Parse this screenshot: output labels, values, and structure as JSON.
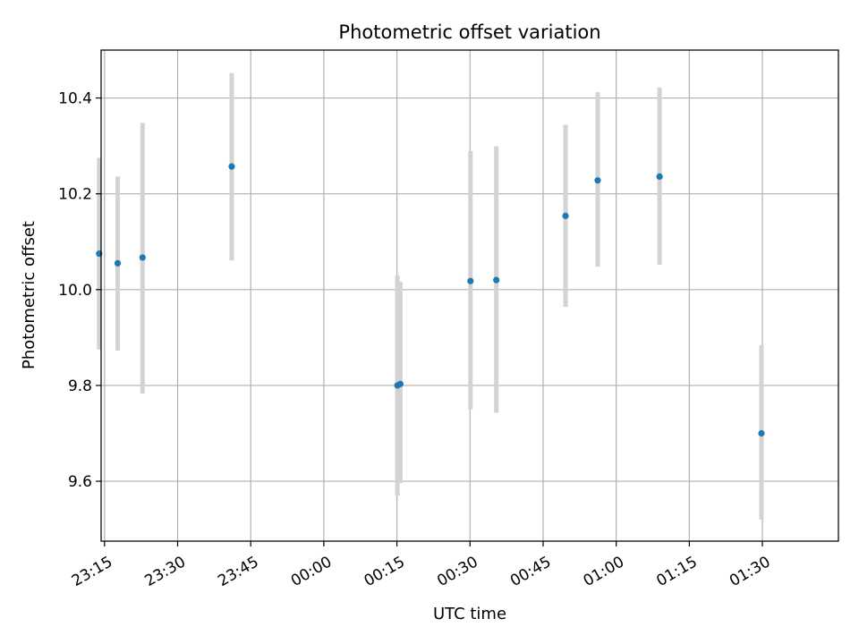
{
  "chart_data": {
    "type": "scatter",
    "title": "Photometric offset variation",
    "xlabel": "UTC time",
    "ylabel": "Photometric offset",
    "xlim_minutes": [
      -45.7,
      105.6
    ],
    "ylim": [
      9.475,
      10.5
    ],
    "grid": true,
    "legend": "none",
    "x_ticks": [
      {
        "label": "23:15",
        "minutes": -45
      },
      {
        "label": "23:30",
        "minutes": -30
      },
      {
        "label": "23:45",
        "minutes": -15
      },
      {
        "label": "00:00",
        "minutes": 0
      },
      {
        "label": "00:15",
        "minutes": 15
      },
      {
        "label": "00:30",
        "minutes": 30
      },
      {
        "label": "00:45",
        "minutes": 45
      },
      {
        "label": "01:00",
        "minutes": 60
      },
      {
        "label": "01:15",
        "minutes": 75
      },
      {
        "label": "01:30",
        "minutes": 90
      }
    ],
    "y_ticks": [
      {
        "label": "9.6",
        "value": 9.6
      },
      {
        "label": "9.8",
        "value": 9.8
      },
      {
        "label": "10.0",
        "value": 10.0
      },
      {
        "label": "10.2",
        "value": 10.2
      },
      {
        "label": "10.4",
        "value": 10.4
      }
    ],
    "points": [
      {
        "time": "23:13:54",
        "y": 10.075,
        "ylow": 9.875,
        "yhigh": 10.275
      },
      {
        "time": "23:17:42",
        "y": 10.055,
        "ylow": 9.873,
        "yhigh": 10.236
      },
      {
        "time": "23:22:48",
        "y": 10.067,
        "ylow": 9.783,
        "yhigh": 10.348
      },
      {
        "time": "23:41:06",
        "y": 10.257,
        "ylow": 10.061,
        "yhigh": 10.452
      },
      {
        "time": "00:15:06",
        "y": 9.8,
        "ylow": 9.57,
        "yhigh": 10.03
      },
      {
        "time": "00:15:42",
        "y": 9.803,
        "ylow": 9.596,
        "yhigh": 10.016
      },
      {
        "time": "00:30:06",
        "y": 10.018,
        "ylow": 9.75,
        "yhigh": 10.289
      },
      {
        "time": "00:35:24",
        "y": 10.02,
        "ylow": 9.743,
        "yhigh": 10.299
      },
      {
        "time": "00:49:36",
        "y": 10.154,
        "ylow": 9.964,
        "yhigh": 10.344
      },
      {
        "time": "00:56:12",
        "y": 10.228,
        "ylow": 10.048,
        "yhigh": 10.412
      },
      {
        "time": "01:08:54",
        "y": 10.236,
        "ylow": 10.052,
        "yhigh": 10.422
      },
      {
        "time": "01:29:48",
        "y": 9.7,
        "ylow": 9.52,
        "yhigh": 9.884
      }
    ],
    "colors": {
      "marker": "#1f77b4",
      "errorbar": "#d3d3d3",
      "grid": "#b0b0b0",
      "axes": "#000000"
    }
  }
}
